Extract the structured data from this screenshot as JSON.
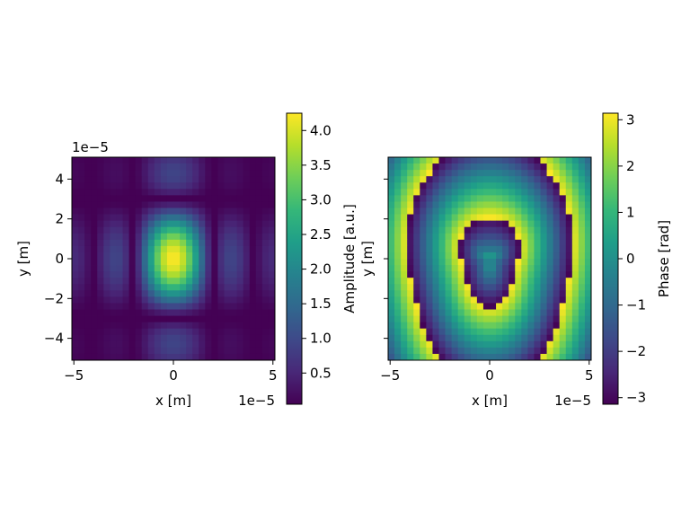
{
  "colormap": "viridis",
  "chart_data": [
    {
      "type": "heatmap",
      "title": "",
      "xlabel": "x [m]",
      "ylabel": "y [m]",
      "x_offset_label": "1e−5",
      "y_offset_label": "1e−5",
      "xlim": [
        -5.1,
        5.1
      ],
      "ylim": [
        -5.1,
        5.1
      ],
      "x_ticks": [
        -5,
        0,
        5
      ],
      "x_tick_labels": [
        "−5",
        "0",
        "5"
      ],
      "y_ticks": [
        -4,
        -2,
        0,
        2,
        4
      ],
      "y_tick_labels": [
        "−4",
        "−2",
        "0",
        "2",
        "4"
      ],
      "grid_size": 32,
      "description_of_values": "sinc-like amplitude pattern, peak ~4.25 at origin",
      "colorbar": {
        "label": "Amplitude [a.u.]",
        "vmin": 0.05,
        "vmax": 4.25,
        "ticks": [
          0.5,
          1.0,
          1.5,
          2.0,
          2.5,
          3.0,
          3.5,
          4.0
        ],
        "tick_labels": [
          "0.5",
          "1.0",
          "1.5",
          "2.0",
          "2.5",
          "3.0",
          "3.5",
          "4.0"
        ]
      }
    },
    {
      "type": "heatmap",
      "title": "",
      "xlabel": "x [m]",
      "ylabel": "y [m]",
      "x_offset_label": "1e−5",
      "xlim": [
        -5.1,
        5.1
      ],
      "ylim": [
        -5.1,
        5.1
      ],
      "x_ticks": [
        -5,
        0,
        5
      ],
      "x_tick_labels": [
        "−5",
        "0",
        "5"
      ],
      "y_ticks": [
        -4,
        -2,
        0,
        2,
        4
      ],
      "y_tick_labels": [
        "",
        "",
        "",
        "",
        ""
      ],
      "grid_size": 32,
      "colorbar": {
        "label": "Phase [rad]",
        "vmin": -3.1416,
        "vmax": 3.1416,
        "ticks": [
          -3,
          -2,
          -1,
          0,
          1,
          2,
          3
        ],
        "tick_labels": [
          "−3",
          "−2",
          "−1",
          "0",
          "1",
          "2",
          "3"
        ]
      }
    }
  ]
}
